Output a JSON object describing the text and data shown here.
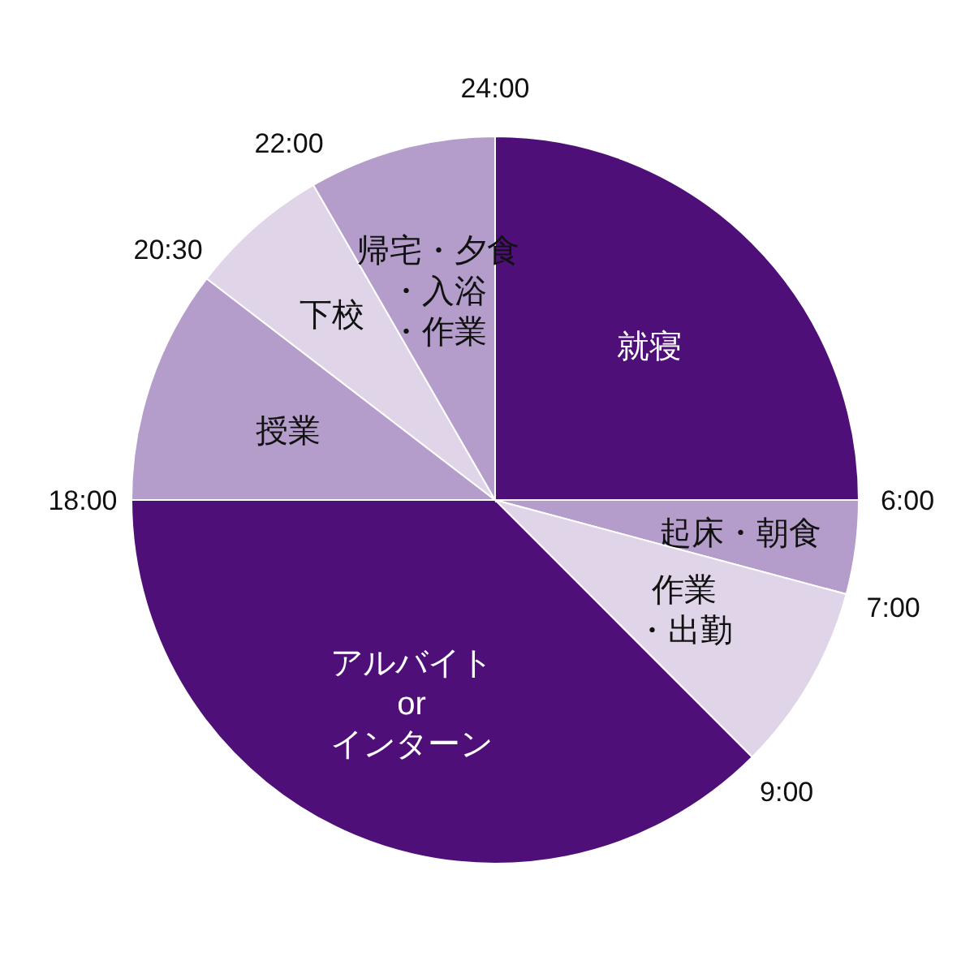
{
  "chart_data": {
    "type": "pie",
    "categories": [
      "就寝",
      "起床・朝食",
      "作業・出勤",
      "アルバイト\nor\nインターン",
      "授業",
      "下校",
      "帰宅・夕食・入浴・作業"
    ],
    "values": [
      25,
      4.17,
      8.33,
      37.5,
      10.42,
      6.25,
      8.33
    ],
    "colors": [
      "#4f0f78",
      "#b49ccb",
      "#e0d4e8",
      "#4f0f78",
      "#b49ccb",
      "#e0d4e8",
      "#b49ccb"
    ],
    "annotations": [
      "6:00",
      "7:00",
      "9:00",
      "18:00",
      "20:30",
      "22:00",
      "24:00"
    ]
  }
}
